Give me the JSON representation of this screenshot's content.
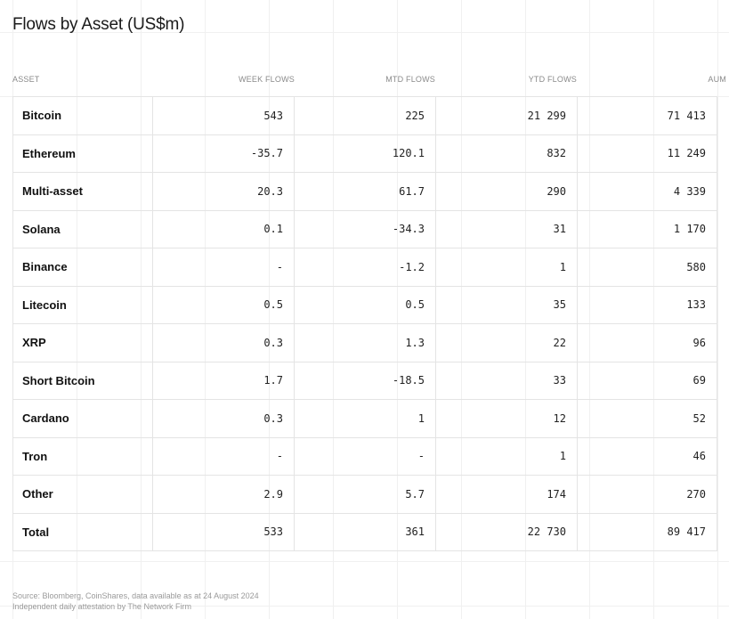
{
  "chart_data": {
    "type": "table",
    "title": "Flows by Asset (US$m)",
    "columns": [
      "ASSET",
      "WEEK FLOWS",
      "MTD FLOWS",
      "YTD FLOWS",
      "AUM"
    ],
    "rows": [
      {
        "asset": "Bitcoin",
        "week": "543",
        "mtd": "225",
        "ytd": "21 299",
        "aum": "71 413"
      },
      {
        "asset": "Ethereum",
        "week": "-35.7",
        "mtd": "120.1",
        "ytd": "832",
        "aum": "11 249"
      },
      {
        "asset": "Multi-asset",
        "week": "20.3",
        "mtd": "61.7",
        "ytd": "290",
        "aum": "4 339"
      },
      {
        "asset": "Solana",
        "week": "0.1",
        "mtd": "-34.3",
        "ytd": "31",
        "aum": "1 170"
      },
      {
        "asset": "Binance",
        "week": "-",
        "mtd": "-1.2",
        "ytd": "1",
        "aum": "580"
      },
      {
        "asset": "Litecoin",
        "week": "0.5",
        "mtd": "0.5",
        "ytd": "35",
        "aum": "133"
      },
      {
        "asset": "XRP",
        "week": "0.3",
        "mtd": "1.3",
        "ytd": "22",
        "aum": "96"
      },
      {
        "asset": "Short Bitcoin",
        "week": "1.7",
        "mtd": "-18.5",
        "ytd": "33",
        "aum": "69"
      },
      {
        "asset": "Cardano",
        "week": "0.3",
        "mtd": "1",
        "ytd": "12",
        "aum": "52"
      },
      {
        "asset": "Tron",
        "week": "-",
        "mtd": "-",
        "ytd": "1",
        "aum": "46"
      },
      {
        "asset": "Other",
        "week": "2.9",
        "mtd": "5.7",
        "ytd": "174",
        "aum": "270"
      },
      {
        "asset": "Total",
        "week": "533",
        "mtd": "361",
        "ytd": "22 730",
        "aum": "89 417"
      }
    ]
  },
  "footer": {
    "source": "Source: Bloomberg, CoinShares, data available as at 24 August 2024",
    "attestation": "Independent daily attestation by The Network Firm"
  }
}
